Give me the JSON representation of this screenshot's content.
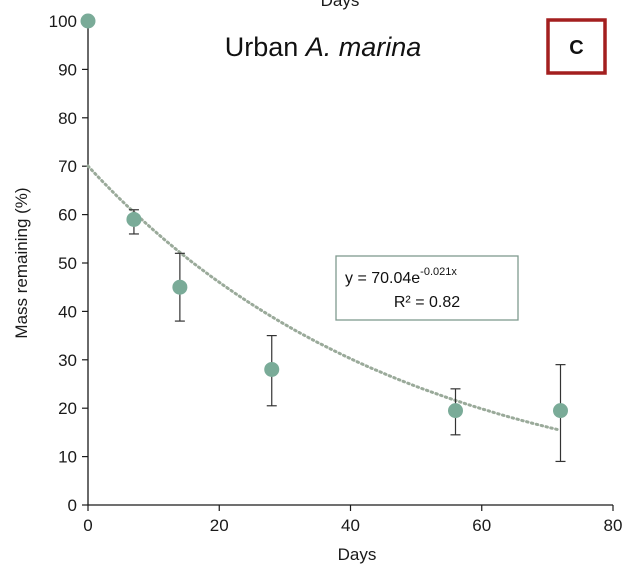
{
  "chart_data": {
    "type": "scatter",
    "title_prefix": "Urban ",
    "title_species": "A. marina",
    "panel_label": "C",
    "top_label": "Days",
    "xlabel": "Days",
    "ylabel": "Mass remaining (%)",
    "xlim": [
      0,
      80
    ],
    "ylim": [
      0,
      100
    ],
    "xticks": [
      0,
      20,
      40,
      60,
      80
    ],
    "yticks": [
      0,
      10,
      20,
      30,
      40,
      50,
      60,
      70,
      80,
      90,
      100
    ],
    "grid": false,
    "series": [
      {
        "x": [
          0,
          7,
          14,
          28,
          56,
          72
        ],
        "y": [
          100,
          59,
          45,
          28,
          19.5,
          19.5
        ],
        "err_low": [
          0,
          3,
          7,
          7.5,
          5,
          10.5
        ],
        "err_high": [
          0,
          2,
          7,
          7,
          4.5,
          9.5
        ],
        "color": "#7aab98"
      }
    ],
    "trendline": {
      "type": "exponential",
      "a": 70.04,
      "b": -0.021,
      "x_range": [
        0,
        72
      ],
      "color": "#9aaa9a",
      "equation_main": "y = 70.04e",
      "equation_exp": "-0.021x",
      "r_squared": "R² = 0.82"
    },
    "colors": {
      "axis": "#1a1a1a",
      "panel_border": "#a31f1f",
      "equation_border": "#7f9a8f"
    }
  }
}
